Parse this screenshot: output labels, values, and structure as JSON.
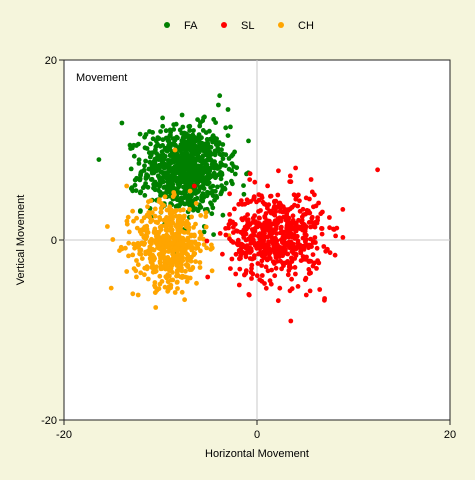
{
  "chart_data": {
    "type": "scatter",
    "title": "Movement",
    "xlabel": "Horizontal Movement",
    "ylabel": "Vertical Movement",
    "xlim": [
      -20,
      20
    ],
    "ylim": [
      -20,
      20
    ],
    "x_ticks": [
      -20,
      0,
      20
    ],
    "y_ticks": [
      -20,
      0,
      20
    ],
    "x_tick_labels": [
      "-20",
      "0",
      "20"
    ],
    "y_tick_labels": [
      "-20",
      "0",
      "20"
    ],
    "grid": "zero-lines",
    "legend_position": "top",
    "series": [
      {
        "name": "FA",
        "color": "#008000",
        "cluster": {
          "center": [
            -7.5,
            7.8
          ],
          "spread": [
            2.2,
            2.4
          ],
          "count": 900,
          "outliers": [
            [
              -14,
              13
            ],
            [
              -3,
              14.5
            ],
            [
              -12.5,
              10.5
            ],
            [
              -2.5,
              9.5
            ],
            [
              -4,
              15
            ]
          ]
        }
      },
      {
        "name": "SL",
        "color": "#ff0000",
        "cluster": {
          "center": [
            2.0,
            0.5
          ],
          "spread": [
            2.4,
            2.5
          ],
          "count": 600,
          "outliers": [
            [
              12.5,
              7.8
            ],
            [
              7.5,
              2.5
            ],
            [
              7,
              -6.5
            ],
            [
              3.5,
              -9
            ],
            [
              4,
              8
            ],
            [
              -6.5,
              6
            ],
            [
              6.5,
              -5.5
            ]
          ]
        }
      },
      {
        "name": "CH",
        "color": "#ffa500",
        "cluster": {
          "center": [
            -9.0,
            -0.5
          ],
          "spread": [
            1.9,
            2.3
          ],
          "count": 500,
          "outliers": [
            [
              -15.5,
              1.5
            ],
            [
              -13.5,
              6
            ],
            [
              -8.5,
              10
            ],
            [
              -10.5,
              -7.5
            ],
            [
              -13.5,
              -3.5
            ]
          ]
        }
      }
    ]
  }
}
